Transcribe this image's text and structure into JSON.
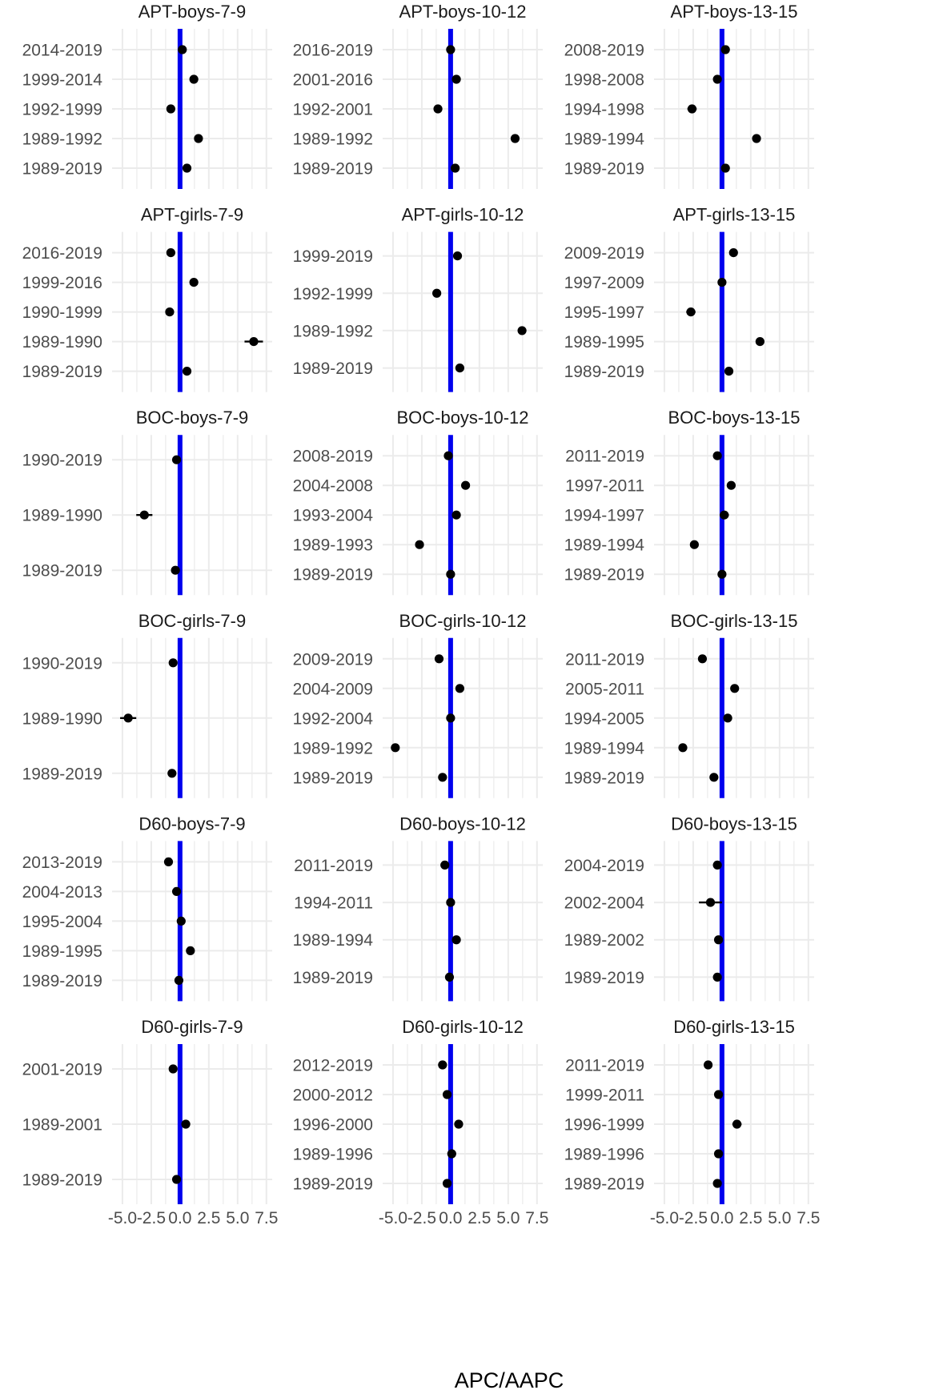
{
  "colors": {
    "reference_line": "#0000ee",
    "point": "#000000",
    "grid": "#ebebeb"
  },
  "chart_data": {
    "type": "scatter",
    "subtype": "forest-plot-with-error-bars",
    "layout": {
      "rows": 6,
      "cols": 3,
      "shared_x": true
    },
    "xlabel": "APC/AAPC",
    "xlim": [
      -5.9,
      8.0
    ],
    "xticks": [
      -5.0,
      -2.5,
      0.0,
      2.5,
      5.0,
      7.5
    ],
    "xtick_labels": [
      "-5.0",
      "-2.5",
      "0.0",
      "2.5",
      "5.0",
      "7.5"
    ],
    "reference_x": 0,
    "grid": true,
    "legend": "none",
    "panels": [
      {
        "title": "APT-boys-7-9",
        "rows": [
          {
            "label": "2014-2019",
            "value": 0.2
          },
          {
            "label": "1999-2014",
            "value": 1.2
          },
          {
            "label": "1992-1999",
            "value": -0.8
          },
          {
            "label": "1989-1992",
            "value": 1.6
          },
          {
            "label": "1989-2019",
            "value": 0.6
          }
        ]
      },
      {
        "title": "APT-boys-10-12",
        "rows": [
          {
            "label": "2016-2019",
            "value": 0.0
          },
          {
            "label": "2001-2016",
            "value": 0.5
          },
          {
            "label": "1992-2001",
            "value": -1.1
          },
          {
            "label": "1989-1992",
            "value": 5.6
          },
          {
            "label": "1989-2019",
            "value": 0.4
          }
        ]
      },
      {
        "title": "APT-boys-13-15",
        "rows": [
          {
            "label": "2008-2019",
            "value": 0.3
          },
          {
            "label": "1998-2008",
            "value": -0.4
          },
          {
            "label": "1994-1998",
            "value": -2.6,
            "ci": [
              -3.0,
              -2.2
            ]
          },
          {
            "label": "1989-1994",
            "value": 3.0
          },
          {
            "label": "1989-2019",
            "value": 0.3
          }
        ]
      },
      {
        "title": "APT-girls-7-9",
        "rows": [
          {
            "label": "2016-2019",
            "value": -0.8
          },
          {
            "label": "1999-2016",
            "value": 1.2
          },
          {
            "label": "1990-1999",
            "value": -0.9
          },
          {
            "label": "1989-1990",
            "value": 6.4,
            "ci": [
              5.6,
              7.2
            ]
          },
          {
            "label": "1989-2019",
            "value": 0.6
          }
        ]
      },
      {
        "title": "APT-girls-10-12",
        "rows": [
          {
            "label": "1999-2019",
            "value": 0.6
          },
          {
            "label": "1992-1999",
            "value": -1.2
          },
          {
            "label": "1989-1992",
            "value": 6.2
          },
          {
            "label": "1989-2019",
            "value": 0.8
          }
        ]
      },
      {
        "title": "APT-girls-13-15",
        "rows": [
          {
            "label": "2009-2019",
            "value": 1.0
          },
          {
            "label": "1997-2009",
            "value": 0.0
          },
          {
            "label": "1995-1997",
            "value": -2.7,
            "ci": [
              -3.1,
              -2.3
            ]
          },
          {
            "label": "1989-1995",
            "value": 3.3
          },
          {
            "label": "1989-2019",
            "value": 0.6
          }
        ]
      },
      {
        "title": "BOC-boys-7-9",
        "rows": [
          {
            "label": "1990-2019",
            "value": -0.3
          },
          {
            "label": "1989-1990",
            "value": -3.1,
            "ci": [
              -3.8,
              -2.4
            ]
          },
          {
            "label": "1989-2019",
            "value": -0.4
          }
        ]
      },
      {
        "title": "BOC-boys-10-12",
        "rows": [
          {
            "label": "2008-2019",
            "value": -0.2
          },
          {
            "label": "2004-2008",
            "value": 1.3
          },
          {
            "label": "1993-2004",
            "value": 0.5
          },
          {
            "label": "1989-1993",
            "value": -2.7
          },
          {
            "label": "1989-2019",
            "value": 0.0
          }
        ]
      },
      {
        "title": "BOC-boys-13-15",
        "rows": [
          {
            "label": "2011-2019",
            "value": -0.4
          },
          {
            "label": "1997-2011",
            "value": 0.8
          },
          {
            "label": "1994-1997",
            "value": 0.2,
            "ci": [
              -0.2,
              0.6
            ]
          },
          {
            "label": "1989-1994",
            "value": -2.4
          },
          {
            "label": "1989-2019",
            "value": 0.0
          }
        ]
      },
      {
        "title": "BOC-girls-7-9",
        "rows": [
          {
            "label": "1990-2019",
            "value": -0.6
          },
          {
            "label": "1989-1990",
            "value": -4.5,
            "ci": [
              -5.2,
              -3.8
            ]
          },
          {
            "label": "1989-2019",
            "value": -0.7
          }
        ]
      },
      {
        "title": "BOC-girls-10-12",
        "rows": [
          {
            "label": "2009-2019",
            "value": -1.0
          },
          {
            "label": "2004-2009",
            "value": 0.8
          },
          {
            "label": "1992-2004",
            "value": 0.0
          },
          {
            "label": "1989-1992",
            "value": -4.8
          },
          {
            "label": "1989-2019",
            "value": -0.7
          }
        ]
      },
      {
        "title": "BOC-girls-13-15",
        "rows": [
          {
            "label": "2011-2019",
            "value": -1.7
          },
          {
            "label": "2005-2011",
            "value": 1.1
          },
          {
            "label": "1994-2005",
            "value": 0.5
          },
          {
            "label": "1989-1994",
            "value": -3.4
          },
          {
            "label": "1989-2019",
            "value": -0.7
          }
        ]
      },
      {
        "title": "D60-boys-7-9",
        "rows": [
          {
            "label": "2013-2019",
            "value": -1.0
          },
          {
            "label": "2004-2013",
            "value": -0.3
          },
          {
            "label": "1995-2004",
            "value": 0.1
          },
          {
            "label": "1989-1995",
            "value": 0.9
          },
          {
            "label": "1989-2019",
            "value": -0.1
          }
        ]
      },
      {
        "title": "D60-boys-10-12",
        "rows": [
          {
            "label": "2011-2019",
            "value": -0.5
          },
          {
            "label": "1994-2011",
            "value": 0.0
          },
          {
            "label": "1989-1994",
            "value": 0.5
          },
          {
            "label": "1989-2019",
            "value": -0.1
          }
        ]
      },
      {
        "title": "D60-boys-13-15",
        "rows": [
          {
            "label": "2004-2019",
            "value": -0.4
          },
          {
            "label": "2002-2004",
            "value": -1.0,
            "ci": [
              -2.0,
              0.0
            ]
          },
          {
            "label": "1989-2002",
            "value": -0.3
          },
          {
            "label": "1989-2019",
            "value": -0.4
          }
        ]
      },
      {
        "title": "D60-girls-7-9",
        "rows": [
          {
            "label": "2001-2019",
            "value": -0.6
          },
          {
            "label": "1989-2001",
            "value": 0.5
          },
          {
            "label": "1989-2019",
            "value": -0.3
          }
        ]
      },
      {
        "title": "D60-girls-10-12",
        "rows": [
          {
            "label": "2012-2019",
            "value": -0.7
          },
          {
            "label": "2000-2012",
            "value": -0.3
          },
          {
            "label": "1996-2000",
            "value": 0.7
          },
          {
            "label": "1989-1996",
            "value": 0.1
          },
          {
            "label": "1989-2019",
            "value": -0.3
          }
        ]
      },
      {
        "title": "D60-girls-13-15",
        "rows": [
          {
            "label": "2011-2019",
            "value": -1.2
          },
          {
            "label": "1999-2011",
            "value": -0.3
          },
          {
            "label": "1996-1999",
            "value": 1.3,
            "ci": [
              0.9,
              1.7
            ]
          },
          {
            "label": "1989-1996",
            "value": -0.3
          },
          {
            "label": "1989-2019",
            "value": -0.4
          }
        ]
      }
    ]
  }
}
